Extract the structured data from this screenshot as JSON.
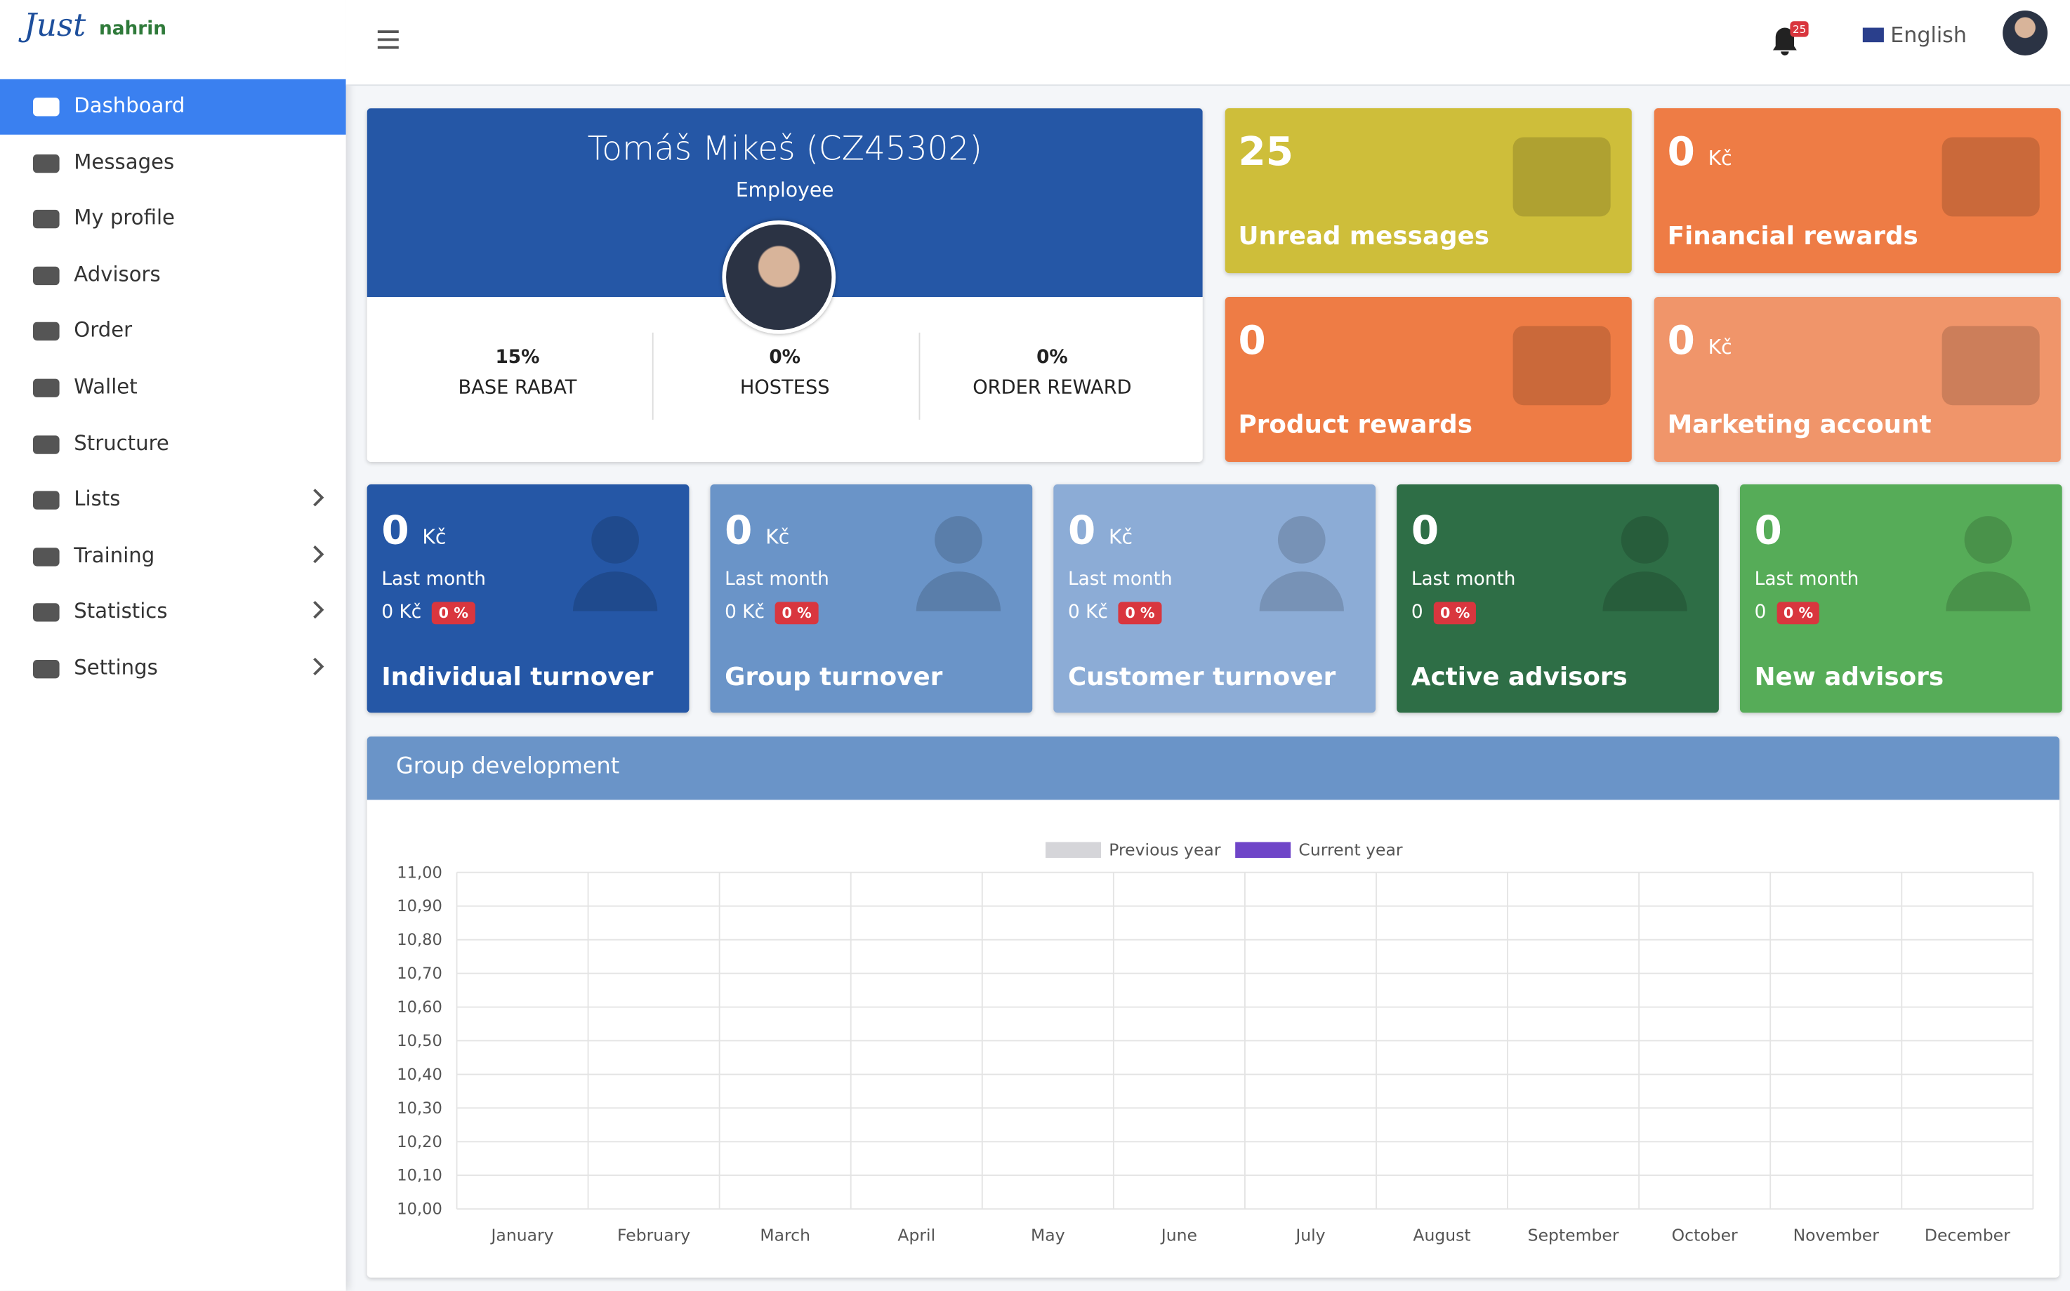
{
  "brand": {
    "logo": "Just",
    "name": "nahrin"
  },
  "sidebar": {
    "items": [
      {
        "label": "Dashboard",
        "active": true,
        "submenu": false
      },
      {
        "label": "Messages",
        "active": false,
        "submenu": false
      },
      {
        "label": "My profile",
        "active": false,
        "submenu": false
      },
      {
        "label": "Advisors",
        "active": false,
        "submenu": false
      },
      {
        "label": "Order",
        "active": false,
        "submenu": false
      },
      {
        "label": "Wallet",
        "active": false,
        "submenu": false
      },
      {
        "label": "Structure",
        "active": false,
        "submenu": false
      },
      {
        "label": "Lists",
        "active": false,
        "submenu": true
      },
      {
        "label": "Training",
        "active": false,
        "submenu": true
      },
      {
        "label": "Statistics",
        "active": false,
        "submenu": true
      },
      {
        "label": "Settings",
        "active": false,
        "submenu": true
      }
    ]
  },
  "header": {
    "notifications": "25",
    "language": "English"
  },
  "profile": {
    "name": "Tomáš Mikeš (CZ45302)",
    "role": "Employee",
    "stats": [
      {
        "value": "15%",
        "label": "BASE RABAT"
      },
      {
        "value": "0%",
        "label": "HOSTESS"
      },
      {
        "value": "0%",
        "label": "ORDER REWARD"
      }
    ]
  },
  "tiles": [
    {
      "value": "25",
      "label": "Unread messages",
      "color": "#cebe3a"
    },
    {
      "value": "0",
      "unit": "Kč",
      "label": "Financial rewards",
      "color": "#ee7c45"
    },
    {
      "value": "0",
      "label": "Product rewards",
      "color": "#ee7c45"
    },
    {
      "value": "0",
      "unit": "Kč",
      "label": "Marketing account",
      "color": "#f0956a"
    }
  ],
  "cards": [
    {
      "value": "0",
      "unit": "Kč",
      "period": "Last month",
      "previous": "0 Kč",
      "change": "0 %",
      "label": "Individual turnover",
      "color": "#2557a6"
    },
    {
      "value": "0",
      "unit": "Kč",
      "period": "Last month",
      "previous": "0 Kč",
      "change": "0 %",
      "label": "Group turnover",
      "color": "#6a94c8"
    },
    {
      "value": "0",
      "unit": "Kč",
      "period": "Last month",
      "previous": "0 Kč",
      "change": "0 %",
      "label": "Customer turnover",
      "color": "#8cacd6"
    },
    {
      "value": "0",
      "period": "Last month",
      "previous": "0",
      "change": "0 %",
      "label": "Active advisors",
      "color": "#2e6e46"
    },
    {
      "value": "0",
      "period": "Last month",
      "previous": "0",
      "change": "0 %",
      "label": "New advisors",
      "color": "#56ac58"
    }
  ],
  "panel": {
    "title": "Group development"
  },
  "chart": {
    "legend": [
      {
        "name": "Previous year",
        "color": "#d5d5d9"
      },
      {
        "name": "Current year",
        "color": "#6f45c8"
      }
    ],
    "categories": [
      "January",
      "February",
      "March",
      "April",
      "May",
      "June",
      "July",
      "August",
      "September",
      "October",
      "November",
      "December"
    ],
    "ylim": [
      10,
      11
    ],
    "yticks": [
      {
        "value": 10,
        "label": "10,00"
      },
      {
        "value": 10.1,
        "label": "10,10"
      },
      {
        "value": 10.2,
        "label": "10,20"
      },
      {
        "value": 10.3,
        "label": "10,30"
      },
      {
        "value": 10.4,
        "label": "10,40"
      },
      {
        "value": 10.5,
        "label": "10,50"
      },
      {
        "value": 10.6,
        "label": "10,60"
      },
      {
        "value": 10.7,
        "label": "10,70"
      },
      {
        "value": 10.8,
        "label": "10,80"
      },
      {
        "value": 10.9,
        "label": "10,90"
      },
      {
        "value": 11,
        "label": "11,00"
      }
    ]
  }
}
